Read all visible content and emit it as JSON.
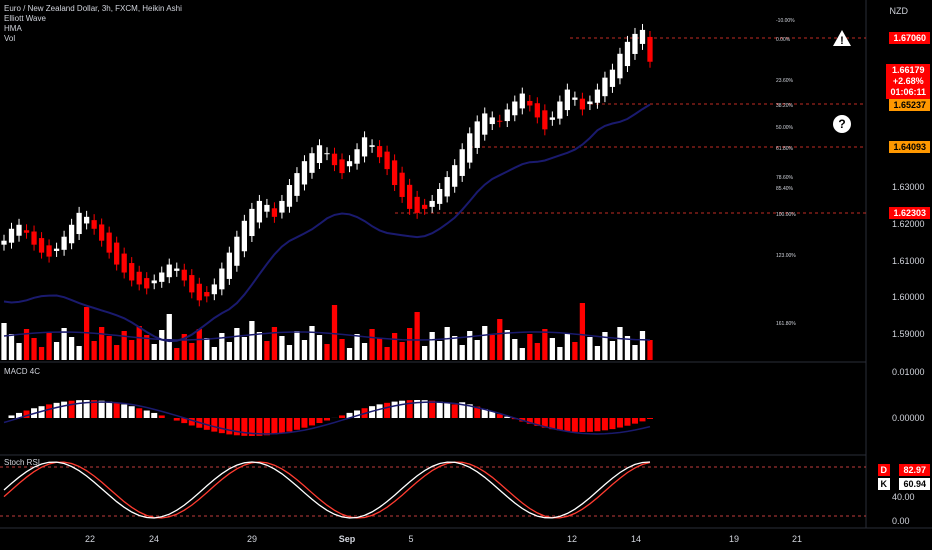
{
  "legend": {
    "title": "Euro / New Zealand Dollar, 3h, FXCM, Heikin Ashi",
    "indicators": [
      "Elliott Wave",
      "HMA",
      "Vol"
    ]
  },
  "currency": "NZD",
  "price_axis": {
    "ticks": [
      "1.63000",
      "1.62000",
      "1.61000",
      "1.60000",
      "1.59000"
    ],
    "tags": {
      "top": "1.67060",
      "last": "1.66179",
      "change": "+2.68%",
      "countdown": "01:06:11",
      "level_382": "1.65237",
      "level_618": "1.64093",
      "level_100": "1.62303"
    }
  },
  "fib_labels": [
    "-10.00%",
    "0.00%",
    "23.60%",
    "38.20%",
    "50.00%",
    "61.80%",
    "78.60%",
    "85.40%",
    "100.00%",
    "123.00%",
    "161.80%"
  ],
  "macd": {
    "label": "MACD 4C",
    "ticks": [
      "0.01000",
      "0.00000"
    ]
  },
  "stoch": {
    "label": "Stoch RSI",
    "d_label": "D",
    "d_value": "82.97",
    "k_label": "K",
    "k_value": "60.94",
    "ticks": [
      "40.00",
      "0.00"
    ]
  },
  "time_axis": [
    "22",
    "24",
    "29",
    "Sep",
    "5",
    "12",
    "14",
    "19",
    "21"
  ],
  "markers": {
    "warning": "!",
    "question": "?"
  },
  "colors": {
    "up": "#ffffff",
    "down": "#ff0000",
    "hma": "#1a1a6e",
    "background": "#000000",
    "tag_red": "#ff0000",
    "tag_orange": "#ff9800"
  },
  "chart_data": {
    "type": "candlestick",
    "price_range": [
      1.587,
      1.673
    ],
    "close_series": [
      1.617,
      1.62,
      1.621,
      1.619,
      1.616,
      1.614,
      1.613,
      1.615,
      1.618,
      1.621,
      1.624,
      1.623,
      1.62,
      1.617,
      1.614,
      1.611,
      1.609,
      1.607,
      1.606,
      1.605,
      1.607,
      1.609,
      1.611,
      1.61,
      1.607,
      1.604,
      1.602,
      1.603,
      1.606,
      1.61,
      1.614,
      1.618,
      1.622,
      1.625,
      1.627,
      1.626,
      1.623,
      1.627,
      1.631,
      1.634,
      1.637,
      1.639,
      1.641,
      1.639,
      1.636,
      1.634,
      1.637,
      1.64,
      1.643,
      1.641,
      1.638,
      1.635,
      1.631,
      1.628,
      1.625,
      1.624,
      1.625,
      1.627,
      1.63,
      1.633,
      1.636,
      1.64,
      1.644,
      1.647,
      1.649,
      1.648,
      1.647,
      1.65,
      1.652,
      1.654,
      1.651,
      1.648,
      1.645,
      1.648,
      1.652,
      1.655,
      1.653,
      1.65,
      1.652,
      1.655,
      1.658,
      1.66,
      1.664,
      1.667,
      1.669,
      1.67,
      1.662
    ]
  }
}
